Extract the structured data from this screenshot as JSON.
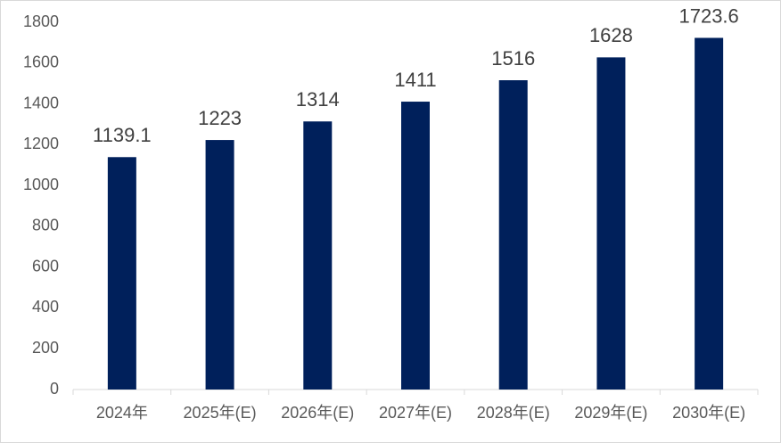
{
  "chart_data": {
    "type": "bar",
    "categories": [
      "2024年",
      "2025年(E)",
      "2026年(E)",
      "2027年(E)",
      "2028年(E)",
      "2029年(E)",
      "2030年(E)"
    ],
    "values": [
      1139.1,
      1223,
      1314,
      1411,
      1516,
      1628,
      1723.6
    ],
    "color": "#00205b",
    "ylim": [
      0,
      1800
    ],
    "yticks": [
      0,
      200,
      400,
      600,
      800,
      1000,
      1200,
      1400,
      1600,
      1800
    ],
    "grid": false,
    "data_labels": true
  }
}
